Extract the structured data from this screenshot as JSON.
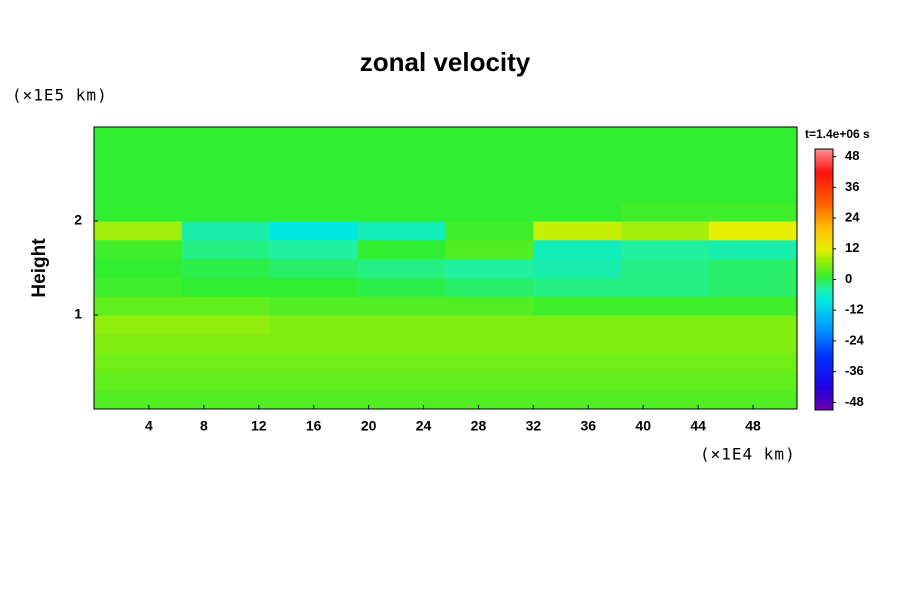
{
  "chart_data": {
    "type": "heatmap",
    "title": "zonal velocity",
    "y_label": "Height",
    "y_unit": "(×1E5 km)",
    "x_unit": "(×1E4 km)",
    "time_label": "t=1.4e+06 s",
    "xlim": [
      0,
      51.2
    ],
    "ylim": [
      0,
      3
    ],
    "xticks": [
      4,
      8,
      12,
      16,
      20,
      24,
      28,
      32,
      36,
      40,
      44,
      48
    ],
    "yticks": [
      1,
      2
    ],
    "x": [
      3.2,
      9.6,
      16,
      22.4,
      28.8,
      35.2,
      41.6,
      48
    ],
    "y": [
      0.1,
      0.3,
      0.5,
      0.7,
      0.9,
      1.1,
      1.3,
      1.5,
      1.7,
      1.9,
      2.1,
      2.3,
      2.5,
      2.7,
      2.9
    ],
    "z": [
      [
        3,
        3,
        3,
        3,
        3,
        3,
        3,
        3
      ],
      [
        4,
        4,
        4,
        4,
        4,
        4,
        4,
        4
      ],
      [
        5,
        5,
        5,
        5,
        5,
        5,
        5,
        5
      ],
      [
        6,
        6,
        6,
        6,
        6,
        6,
        6,
        6
      ],
      [
        7,
        7,
        6,
        6,
        6,
        6,
        6,
        6
      ],
      [
        4,
        4,
        3,
        3,
        3,
        2,
        2,
        2
      ],
      [
        2,
        1,
        1,
        0,
        -1,
        -2,
        -2,
        -1
      ],
      [
        1,
        0,
        -1,
        -2,
        -3,
        -4,
        -2,
        -1
      ],
      [
        2,
        -2,
        -3,
        1,
        3,
        -5,
        -3,
        -4
      ],
      [
        8,
        -4,
        -8,
        -5,
        2,
        10,
        8,
        12
      ],
      [
        1,
        1,
        1,
        1,
        1,
        1,
        2,
        2
      ],
      [
        1,
        1,
        1,
        1,
        1,
        1,
        1,
        1
      ],
      [
        1,
        1,
        1,
        1,
        1,
        1,
        1,
        1
      ],
      [
        1,
        1,
        1,
        1,
        1,
        1,
        1,
        1
      ],
      [
        1,
        1,
        1,
        1,
        1,
        1,
        1,
        1
      ]
    ],
    "clim": [
      -51,
      51
    ],
    "cticks": [
      48,
      36,
      24,
      12,
      0,
      -12,
      -24,
      -36,
      -48
    ],
    "colormap": [
      {
        "value": -51,
        "color": "#6a00a8"
      },
      {
        "value": -42,
        "color": "#2000e0"
      },
      {
        "value": -30,
        "color": "#0030ff"
      },
      {
        "value": -18,
        "color": "#00a0ff"
      },
      {
        "value": -8,
        "color": "#00e8e0"
      },
      {
        "value": -3,
        "color": "#20f0a0"
      },
      {
        "value": 1,
        "color": "#30ee30"
      },
      {
        "value": 6,
        "color": "#80ee10"
      },
      {
        "value": 12,
        "color": "#e8f000"
      },
      {
        "value": 20,
        "color": "#ffc000"
      },
      {
        "value": 30,
        "color": "#ff6000"
      },
      {
        "value": 42,
        "color": "#ff1010"
      },
      {
        "value": 51,
        "color": "#ff9090"
      }
    ]
  }
}
